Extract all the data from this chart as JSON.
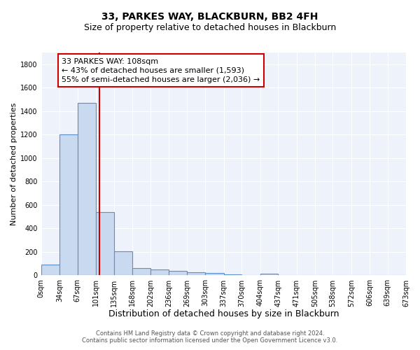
{
  "title": "33, PARKES WAY, BLACKBURN, BB2 4FH",
  "subtitle": "Size of property relative to detached houses in Blackburn",
  "xlabel": "Distribution of detached houses by size in Blackburn",
  "ylabel": "Number of detached properties",
  "bin_edges": [
    0,
    34,
    67,
    101,
    135,
    168,
    202,
    236,
    269,
    303,
    337,
    370,
    404,
    437,
    471,
    505,
    538,
    572,
    606,
    639,
    673
  ],
  "bin_labels": [
    "0sqm",
    "34sqm",
    "67sqm",
    "101sqm",
    "135sqm",
    "168sqm",
    "202sqm",
    "236sqm",
    "269sqm",
    "303sqm",
    "337sqm",
    "370sqm",
    "404sqm",
    "437sqm",
    "471sqm",
    "505sqm",
    "538sqm",
    "572sqm",
    "606sqm",
    "639sqm",
    "673sqm"
  ],
  "counts": [
    90,
    1200,
    1470,
    540,
    205,
    65,
    48,
    40,
    27,
    20,
    10,
    0,
    13,
    0,
    0,
    0,
    0,
    0,
    0,
    0
  ],
  "bar_facecolor": "#c9d9f0",
  "bar_edgecolor": "#5b8fc9",
  "property_line_x": 108,
  "property_line_color": "#cc0000",
  "annotation_line1": "33 PARKES WAY: 108sqm",
  "annotation_line2": "← 43% of detached houses are smaller (1,593)",
  "annotation_line3": "55% of semi-detached houses are larger (2,036) →",
  "annotation_box_color": "#ffffff",
  "annotation_box_edgecolor": "#cc0000",
  "ylim": [
    0,
    1900
  ],
  "yticks": [
    0,
    200,
    400,
    600,
    800,
    1000,
    1200,
    1400,
    1600,
    1800
  ],
  "background_color": "#eef2fb",
  "grid_color": "#ffffff",
  "footer_line1": "Contains HM Land Registry data © Crown copyright and database right 2024.",
  "footer_line2": "Contains public sector information licensed under the Open Government Licence v3.0.",
  "title_fontsize": 10,
  "subtitle_fontsize": 9,
  "xlabel_fontsize": 9,
  "ylabel_fontsize": 8,
  "tick_fontsize": 7,
  "annotation_fontsize": 8,
  "footer_fontsize": 6
}
